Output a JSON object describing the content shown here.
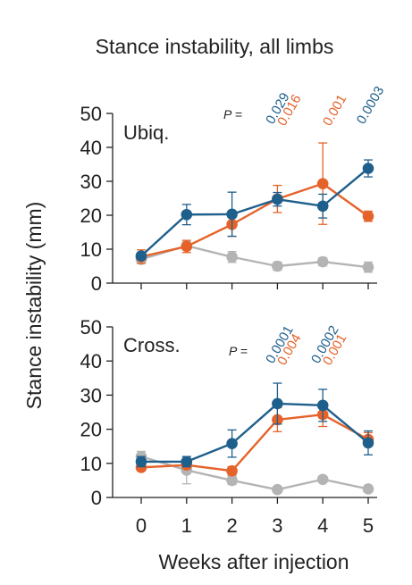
{
  "chart_data": {
    "type": "line",
    "title": "Stance instability, all limbs",
    "ylabel": "Stance instability (mm)",
    "xlabel": "Weeks after injection",
    "x": [
      0,
      1,
      2,
      3,
      4,
      5
    ],
    "x_tick_labels": [
      "0",
      "1",
      "2",
      "3",
      "4",
      "5"
    ],
    "ylim": [
      0,
      50
    ],
    "y_ticks": [
      0,
      10,
      20,
      30,
      40,
      50
    ],
    "colors": {
      "blue": "#1f5f8b",
      "orange": "#e5632a",
      "gray": "#b4b4b4"
    },
    "panels": [
      {
        "label": "Ubiq.",
        "p_prefix": "P =",
        "series": [
          {
            "color": "#b4b4b4",
            "values": [
              7.0,
              11.0,
              7.7,
              5.0,
              6.3,
              4.7
            ],
            "err": [
              1.0,
              1.2,
              1.6,
              1.2,
              1.2,
              1.5
            ]
          },
          {
            "color": "#e5632a",
            "values": [
              7.8,
              10.8,
              17.3,
              24.8,
              29.3,
              19.7
            ],
            "err": [
              2.0,
              1.8,
              3.5,
              4.0,
              12.0,
              1.5
            ]
          },
          {
            "color": "#1f5f8b",
            "values": [
              8.0,
              20.2,
              20.3,
              24.7,
              22.7,
              33.8
            ],
            "err": [
              1.0,
              3.0,
              6.5,
              2.0,
              3.5,
              2.5
            ]
          }
        ],
        "p_values": [
          {
            "week": 3,
            "blue": "0.029",
            "orange": "0.016"
          },
          {
            "week": 4,
            "orange": "0.001"
          },
          {
            "week": 5,
            "blue": "0.0003"
          }
        ]
      },
      {
        "label": "Cross.",
        "p_prefix": "P =",
        "series": [
          {
            "color": "#b4b4b4",
            "values": [
              12.0,
              8.0,
              5.0,
              2.3,
              5.3,
              2.5
            ],
            "err": [
              1.5,
              4.0,
              1.2,
              0.8,
              0.8,
              0.8
            ]
          },
          {
            "color": "#e5632a",
            "values": [
              8.8,
              9.5,
              7.8,
              22.8,
              24.3,
              17.0
            ],
            "err": [
              1.0,
              1.0,
              1.2,
              3.5,
              3.5,
              2.0
            ]
          },
          {
            "color": "#1f5f8b",
            "values": [
              10.5,
              10.5,
              15.8,
              27.5,
              27.0,
              16.0
            ],
            "err": [
              1.5,
              1.5,
              4.0,
              6.0,
              4.7,
              3.5
            ]
          }
        ],
        "p_values": [
          {
            "week": 3,
            "blue": "0.0001",
            "orange": "0.004"
          },
          {
            "week": 4,
            "blue": "0.0002",
            "orange": "0.001"
          }
        ]
      }
    ]
  }
}
